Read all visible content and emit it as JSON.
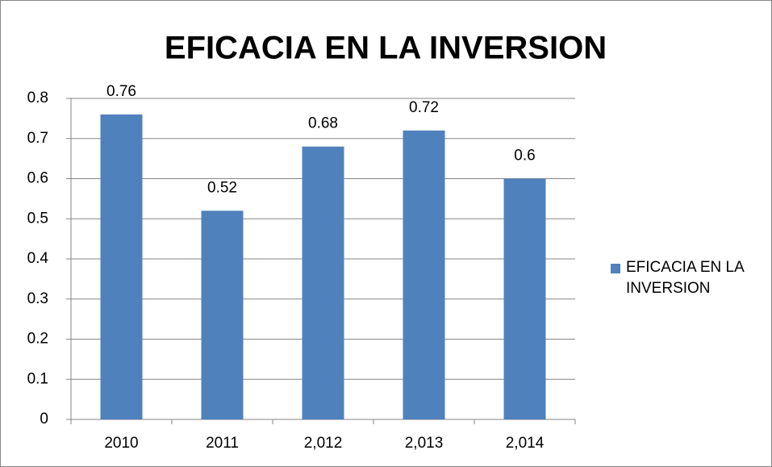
{
  "chart_data": {
    "type": "bar",
    "title": "EFICACIA EN LA INVERSION",
    "categories": [
      "2010",
      "2011",
      "2,012",
      "2,013",
      "2,014"
    ],
    "series": [
      {
        "name": "EFICACIA EN LA INVERSION",
        "color": "#4f81bd",
        "values": [
          0.76,
          0.52,
          0.68,
          0.72,
          0.6
        ]
      }
    ],
    "ylim": [
      0,
      0.8
    ],
    "yticks": [
      0,
      0.1,
      0.2,
      0.3,
      0.4,
      0.5,
      0.6,
      0.7,
      0.8
    ],
    "grid": true,
    "legend": "right"
  }
}
